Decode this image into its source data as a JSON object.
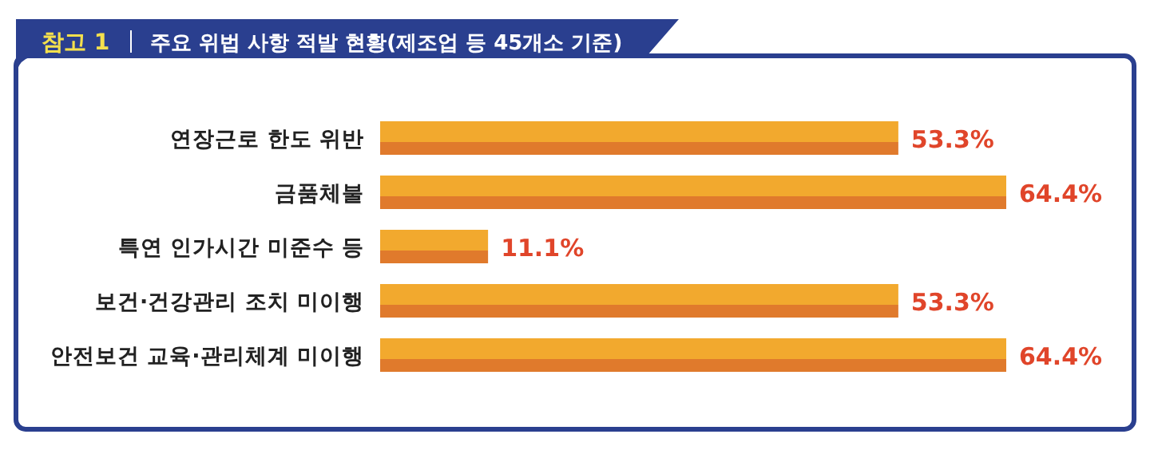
{
  "chart_data": {
    "type": "bar",
    "orientation": "horizontal",
    "title": "참고 1",
    "subtitle": "주요 위법 사항 적발 현황(제조업 등 45개소 기준)",
    "categories": [
      "연장근로 한도 위반",
      "금품체불",
      "특연 인가시간 미준수 등",
      "보건·건강관리 조치 미이행",
      "안전보건 교육·관리체계 미이행"
    ],
    "values": [
      53.3,
      64.4,
      11.1,
      53.3,
      64.4
    ],
    "value_labels": [
      "53.3%",
      "64.4%",
      "11.1%",
      "53.3%",
      "64.4%"
    ],
    "color": "#f2a92e"
  }
}
